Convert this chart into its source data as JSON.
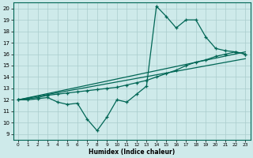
{
  "xlabel": "Humidex (Indice chaleur)",
  "bg_color": "#ceeaea",
  "grid_color": "#aacccc",
  "line_color": "#006655",
  "xlim": [
    -0.5,
    23.5
  ],
  "ylim": [
    8.5,
    20.5
  ],
  "xticks": [
    0,
    1,
    2,
    3,
    4,
    5,
    6,
    7,
    8,
    9,
    10,
    11,
    12,
    13,
    14,
    15,
    16,
    17,
    18,
    19,
    20,
    21,
    22,
    23
  ],
  "yticks": [
    9,
    10,
    11,
    12,
    13,
    14,
    15,
    16,
    17,
    18,
    19,
    20
  ],
  "line1_x": [
    0,
    1,
    2,
    3,
    4,
    5,
    6,
    7,
    8,
    9,
    10,
    11,
    12,
    13,
    14,
    15,
    16,
    17,
    18,
    19,
    20,
    21,
    22,
    23
  ],
  "line1_y": [
    12.0,
    12.0,
    12.1,
    12.2,
    11.8,
    11.6,
    11.7,
    10.3,
    9.3,
    10.5,
    12.0,
    11.8,
    12.5,
    13.2,
    20.2,
    19.3,
    18.3,
    19.0,
    19.0,
    17.5,
    16.5,
    16.3,
    16.2,
    16.0
  ],
  "line2_x": [
    0,
    23
  ],
  "line2_y": [
    12.0,
    16.2
  ],
  "line3_x": [
    0,
    23
  ],
  "line3_y": [
    12.0,
    15.6
  ],
  "line4_x": [
    0,
    1,
    2,
    3,
    4,
    5,
    6,
    7,
    8,
    9,
    10,
    11,
    12,
    13,
    14,
    15,
    16,
    17,
    18,
    19,
    20,
    21,
    22,
    23
  ],
  "line4_y": [
    12.0,
    12.1,
    12.2,
    12.4,
    12.5,
    12.6,
    12.7,
    12.8,
    12.9,
    13.0,
    13.1,
    13.3,
    13.5,
    13.7,
    14.0,
    14.3,
    14.6,
    15.0,
    15.3,
    15.5,
    15.8,
    16.0,
    16.2,
    16.0
  ]
}
